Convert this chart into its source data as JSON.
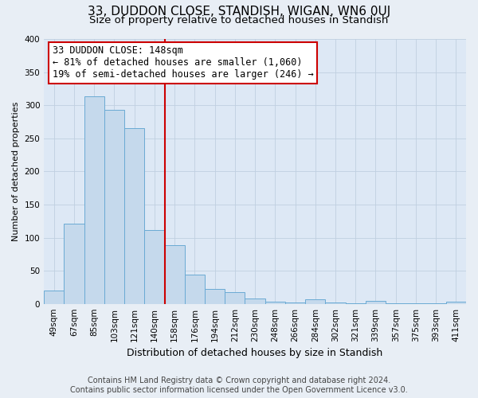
{
  "title": "33, DUDDON CLOSE, STANDISH, WIGAN, WN6 0UJ",
  "subtitle": "Size of property relative to detached houses in Standish",
  "xlabel": "Distribution of detached houses by size in Standish",
  "ylabel": "Number of detached properties",
  "bar_labels": [
    "49sqm",
    "67sqm",
    "85sqm",
    "103sqm",
    "121sqm",
    "140sqm",
    "158sqm",
    "176sqm",
    "194sqm",
    "212sqm",
    "230sqm",
    "248sqm",
    "266sqm",
    "284sqm",
    "302sqm",
    "321sqm",
    "339sqm",
    "357sqm",
    "375sqm",
    "393sqm",
    "411sqm"
  ],
  "bar_values": [
    20,
    121,
    313,
    293,
    265,
    111,
    88,
    44,
    22,
    18,
    8,
    3,
    2,
    7,
    2,
    1,
    5,
    1,
    1,
    1,
    3
  ],
  "bar_color": "#c5d9ec",
  "bar_edge_color": "#6aaad4",
  "vline_x_index": 5.5,
  "vline_color": "#cc0000",
  "ylim": [
    0,
    400
  ],
  "yticks": [
    0,
    50,
    100,
    150,
    200,
    250,
    300,
    350,
    400
  ],
  "annotation_text": "33 DUDDON CLOSE: 148sqm\n← 81% of detached houses are smaller (1,060)\n19% of semi-detached houses are larger (246) →",
  "annotation_box_color": "#ffffff",
  "annotation_box_edge": "#cc0000",
  "footer_line1": "Contains HM Land Registry data © Crown copyright and database right 2024.",
  "footer_line2": "Contains public sector information licensed under the Open Government Licence v3.0.",
  "bg_color": "#e8eef5",
  "plot_bg_color": "#dde8f5",
  "grid_color": "#c0cfe0",
  "title_fontsize": 11,
  "subtitle_fontsize": 9.5,
  "xlabel_fontsize": 9,
  "ylabel_fontsize": 8,
  "tick_fontsize": 7.5,
  "footer_fontsize": 7,
  "ann_fontsize": 8.5
}
